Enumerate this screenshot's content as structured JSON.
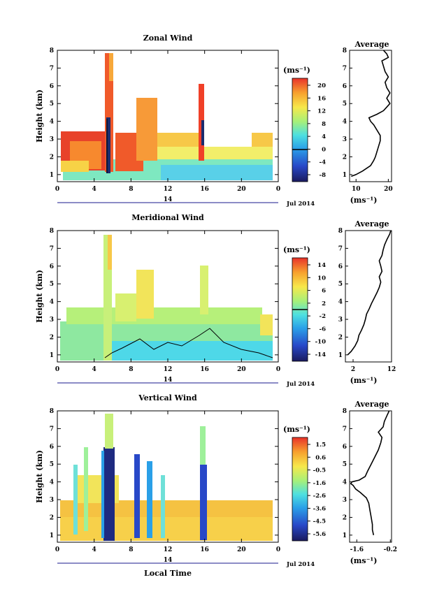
{
  "shared": {
    "date_label": "Jul 2014",
    "day_label": "14",
    "x_label": "Local Time",
    "x_ticks": [
      "0",
      "4",
      "8",
      "12",
      "16",
      "20",
      "0"
    ],
    "y_label": "Height (km)",
    "y_ticks": [
      "1",
      "2",
      "3",
      "4",
      "5",
      "6",
      "7",
      "8"
    ],
    "unit_label": "(ms⁻¹)",
    "avg_title": "Average",
    "avg_xlabel": "(ms⁻¹)"
  },
  "chart_data": [
    {
      "type": "heatmap",
      "title": "Zonal Wind",
      "xlabel": "Local Time",
      "ylabel": "Height (km)",
      "xlim": [
        0,
        24
      ],
      "ylim": [
        0.6,
        8
      ],
      "cbar_ticks": [
        "20",
        "16",
        "12",
        "8",
        "4",
        "0",
        "-4",
        "-8"
      ],
      "cbar_range": [
        -10,
        22
      ],
      "cbar_line": 0,
      "profile": {
        "title": "Average",
        "xlim": [
          8,
          21
        ],
        "xticks": [
          "10",
          "20"
        ],
        "heights": [
          0.9,
          1.0,
          1.2,
          1.5,
          1.8,
          2.0,
          2.3,
          2.6,
          2.9,
          3.2,
          3.5,
          3.8,
          4.0,
          4.2,
          4.4,
          4.6,
          4.8,
          5.0,
          5.3,
          5.6,
          5.9,
          6.2,
          6.5,
          6.8,
          7.1,
          7.4,
          7.6,
          7.8,
          8.0
        ],
        "values": [
          8.5,
          10,
          12,
          14.5,
          15.5,
          16,
          16.5,
          17,
          17.5,
          17.5,
          16.5,
          15.5,
          14.5,
          14,
          16.5,
          18.5,
          19.5,
          20.5,
          19.5,
          20.5,
          19.5,
          19,
          20,
          19,
          18.5,
          18,
          20,
          19.5,
          18.5
        ]
      }
    },
    {
      "type": "heatmap",
      "title": "Meridional Wind",
      "xlabel": "Local Time",
      "ylabel": "Height (km)",
      "xlim": [
        0,
        24
      ],
      "ylim": [
        0.6,
        8
      ],
      "cbar_ticks": [
        "14",
        "10",
        "6",
        "2",
        "-2",
        "-6",
        "-10",
        "-14"
      ],
      "cbar_range": [
        -16,
        16
      ],
      "cbar_line": 0,
      "profile": {
        "title": "Average",
        "xlim": [
          0,
          12
        ],
        "xticks": [
          "2",
          "12"
        ],
        "heights": [
          1.0,
          1.2,
          1.5,
          1.8,
          2.1,
          2.4,
          2.7,
          3.0,
          3.3,
          3.6,
          3.9,
          4.2,
          4.5,
          4.8,
          5.1,
          5.4,
          5.7,
          6.0,
          6.3,
          6.6,
          6.9,
          7.2,
          7.5,
          7.8,
          8.0
        ],
        "values": [
          0.6,
          1.5,
          2.5,
          3.2,
          3.5,
          4.2,
          4.8,
          5.2,
          5.5,
          6.2,
          6.8,
          7.5,
          8.2,
          8.8,
          9.2,
          8.8,
          9.5,
          9.2,
          8.8,
          9.5,
          9.8,
          10.2,
          10.8,
          11.5,
          11.8
        ]
      }
    },
    {
      "type": "heatmap",
      "title": "Vertical Wind",
      "xlabel": "Local Time",
      "ylabel": "Height (km)",
      "xlim": [
        0,
        24
      ],
      "ylim": [
        0.6,
        8
      ],
      "cbar_ticks": [
        "1.5",
        "0.6",
        "-0.5",
        "-1.6",
        "-2.6",
        "-3.6",
        "-4.5",
        "-5.6"
      ],
      "cbar_range": [
        -6.2,
        2.2
      ],
      "profile": {
        "title": "Average",
        "xlim": [
          -1.9,
          -0.15
        ],
        "xticks": [
          "-1.6",
          "-0.2"
        ],
        "heights": [
          1.0,
          1.3,
          1.6,
          2.0,
          2.4,
          2.8,
          3.1,
          3.4,
          3.6,
          3.8,
          3.9,
          4.0,
          4.1,
          4.3,
          4.6,
          5.0,
          5.4,
          5.8,
          6.2,
          6.5,
          6.8,
          7.1,
          7.4,
          7.7,
          8.0
        ],
        "values": [
          -0.9,
          -0.95,
          -0.95,
          -1.0,
          -1.05,
          -1.1,
          -1.2,
          -1.45,
          -1.65,
          -1.75,
          -1.85,
          -1.8,
          -1.5,
          -1.25,
          -1.15,
          -1.0,
          -0.85,
          -0.7,
          -0.6,
          -0.55,
          -0.7,
          -0.5,
          -0.45,
          -0.35,
          -0.25
        ]
      }
    }
  ]
}
